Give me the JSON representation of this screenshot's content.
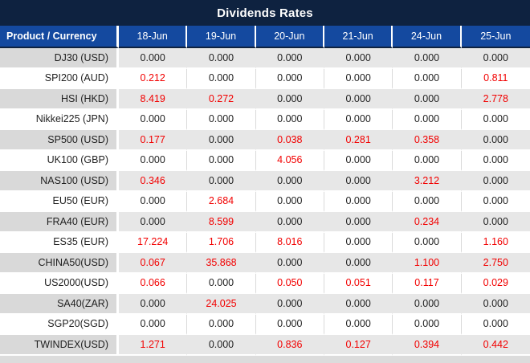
{
  "title": "Dividends Rates",
  "colors": {
    "title_bar": "#0e2240",
    "header_bg": "#14499f",
    "row_gray_label": "#d9d9d9",
    "row_gray_value": "#e7e7e7",
    "value_red": "#f20000",
    "text_dark": "#1f1f1f"
  },
  "chart_data": {
    "type": "table",
    "title": "Dividends Rates",
    "columns": [
      "Product / Currency",
      "18-Jun",
      "19-Jun",
      "20-Jun",
      "21-Jun",
      "24-Jun",
      "25-Jun"
    ],
    "value_color_rule": "non-zero dividend values rendered in red, zeros in dark gray",
    "rows": [
      {
        "product": "DJ30 (USD)",
        "values": [
          "0.000",
          "0.000",
          "0.000",
          "0.000",
          "0.000",
          "0.000"
        ]
      },
      {
        "product": "SPI200 (AUD)",
        "values": [
          "0.212",
          "0.000",
          "0.000",
          "0.000",
          "0.000",
          "0.811"
        ]
      },
      {
        "product": "HSI (HKD)",
        "values": [
          "8.419",
          "0.272",
          "0.000",
          "0.000",
          "0.000",
          "2.778"
        ]
      },
      {
        "product": "Nikkei225 (JPN)",
        "values": [
          "0.000",
          "0.000",
          "0.000",
          "0.000",
          "0.000",
          "0.000"
        ]
      },
      {
        "product": "SP500 (USD)",
        "values": [
          "0.177",
          "0.000",
          "0.038",
          "0.281",
          "0.358",
          "0.000"
        ]
      },
      {
        "product": "UK100 (GBP)",
        "values": [
          "0.000",
          "0.000",
          "4.056",
          "0.000",
          "0.000",
          "0.000"
        ]
      },
      {
        "product": "NAS100 (USD)",
        "values": [
          "0.346",
          "0.000",
          "0.000",
          "0.000",
          "3.212",
          "0.000"
        ]
      },
      {
        "product": "EU50 (EUR)",
        "values": [
          "0.000",
          "2.684",
          "0.000",
          "0.000",
          "0.000",
          "0.000"
        ]
      },
      {
        "product": "FRA40 (EUR)",
        "values": [
          "0.000",
          "8.599",
          "0.000",
          "0.000",
          "0.234",
          "0.000"
        ]
      },
      {
        "product": "ES35 (EUR)",
        "values": [
          "17.224",
          "1.706",
          "8.016",
          "0.000",
          "0.000",
          "1.160"
        ]
      },
      {
        "product": "CHINA50(USD)",
        "values": [
          "0.067",
          "35.868",
          "0.000",
          "0.000",
          "1.100",
          "2.750"
        ]
      },
      {
        "product": "US2000(USD)",
        "values": [
          "0.066",
          "0.000",
          "0.050",
          "0.051",
          "0.117",
          "0.029"
        ]
      },
      {
        "product": "SA40(ZAR)",
        "values": [
          "0.000",
          "24.025",
          "0.000",
          "0.000",
          "0.000",
          "0.000"
        ]
      },
      {
        "product": "SGP20(SGD)",
        "values": [
          "0.000",
          "0.000",
          "0.000",
          "0.000",
          "0.000",
          "0.000"
        ]
      },
      {
        "product": "TWINDEX(USD)",
        "values": [
          "1.271",
          "0.000",
          "0.836",
          "0.127",
          "0.394",
          "0.442"
        ]
      }
    ]
  }
}
